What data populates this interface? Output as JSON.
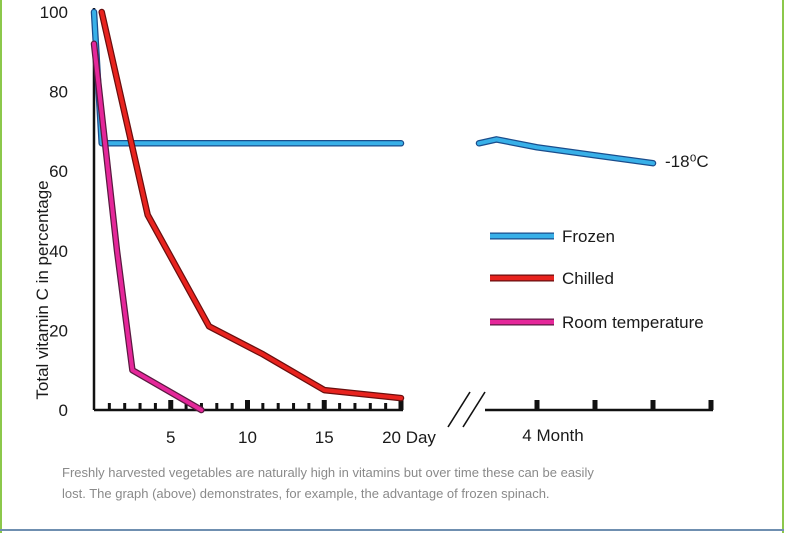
{
  "chart_data": {
    "type": "line",
    "title": "",
    "ylabel": "Total vitamin C in percentage",
    "xlabel": "",
    "ylim": [
      0,
      100
    ],
    "yticks": [
      "0",
      "20",
      "40",
      "60",
      "80",
      "100"
    ],
    "day_axis": {
      "range": [
        0,
        20
      ],
      "ticks": [
        1,
        2,
        3,
        4,
        5,
        6,
        7,
        8,
        9,
        10,
        11,
        12,
        13,
        14,
        15,
        16,
        17,
        18,
        19,
        20
      ],
      "major_ticks": [
        5,
        10,
        15,
        20
      ],
      "labels": [
        {
          "value": 5,
          "text": "5"
        },
        {
          "value": 10,
          "text": "10"
        },
        {
          "value": 15,
          "text": "15"
        },
        {
          "value": 20,
          "text": "20 Day"
        }
      ]
    },
    "month_axis": {
      "range": [
        0,
        4
      ],
      "major_ticks": [
        1,
        2,
        3,
        4
      ],
      "label": "4 Month"
    },
    "series": [
      {
        "name": "Frozen",
        "color": "#38b0e8",
        "edge": "#1a4d8c",
        "day_points": [
          [
            0,
            100
          ],
          [
            0.5,
            67
          ],
          [
            20,
            67
          ]
        ],
        "month_points": [
          [
            0,
            67
          ],
          [
            0.3,
            68
          ],
          [
            1,
            66
          ],
          [
            2,
            64
          ],
          [
            3,
            62
          ]
        ],
        "end_label": "-18⁰C"
      },
      {
        "name": "Chilled",
        "color": "#e8231e",
        "edge": "#6a0e0e",
        "day_points": [
          [
            0.5,
            100
          ],
          [
            3.5,
            49
          ],
          [
            7.5,
            21
          ],
          [
            11,
            14
          ],
          [
            15,
            5
          ],
          [
            20,
            3
          ]
        ]
      },
      {
        "name": "Room temperature",
        "color": "#e5279a",
        "edge": "#5a1a40",
        "day_points": [
          [
            0,
            92
          ],
          [
            1.5,
            40
          ],
          [
            2.5,
            10
          ],
          [
            7,
            0
          ]
        ]
      }
    ]
  },
  "caption": "Freshly harvested vegetables are naturally high in vitamins but over time these can be easily\nlost. The graph (above) demonstrates, for example, the advantage of frozen spinach."
}
